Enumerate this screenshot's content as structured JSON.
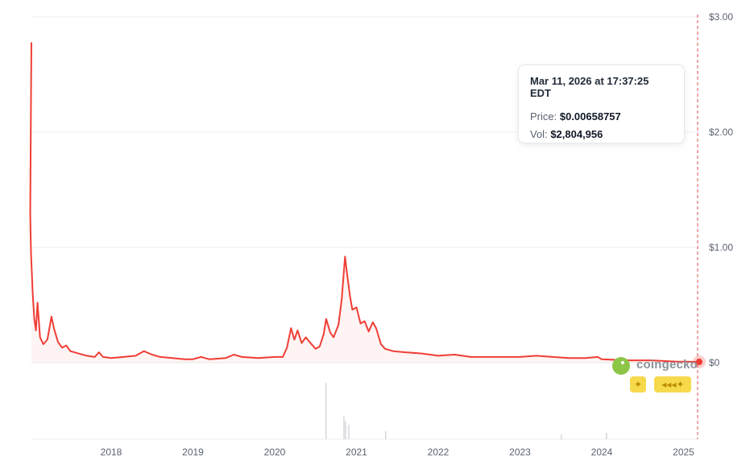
{
  "chart_data": {
    "type": "line",
    "title": "",
    "xlabel": "",
    "ylabel": "",
    "x_ticks": [
      "2018",
      "2019",
      "2020",
      "2021",
      "2022",
      "2023",
      "2024",
      "2025"
    ],
    "y_ticks": [
      "$0",
      "$1.00",
      "$2.00",
      "$3.00"
    ],
    "y_tick_values": [
      0,
      1,
      2,
      3
    ],
    "ylim": [
      0,
      3
    ],
    "grid": true,
    "line_color": "#ef3e36",
    "series": [
      {
        "values": [
          [
            2017.0,
            2.78
          ],
          [
            2017.01,
            1.3
          ],
          [
            2017.02,
            0.95
          ],
          [
            2017.04,
            0.6
          ],
          [
            2017.06,
            0.38
          ],
          [
            2017.08,
            0.28
          ],
          [
            2017.1,
            0.52
          ],
          [
            2017.13,
            0.22
          ],
          [
            2017.17,
            0.16
          ],
          [
            2017.22,
            0.2
          ],
          [
            2017.27,
            0.4
          ],
          [
            2017.3,
            0.3
          ],
          [
            2017.35,
            0.18
          ],
          [
            2017.4,
            0.13
          ],
          [
            2017.45,
            0.15
          ],
          [
            2017.5,
            0.1
          ],
          [
            2017.6,
            0.08
          ],
          [
            2017.7,
            0.06
          ],
          [
            2017.8,
            0.05
          ],
          [
            2017.85,
            0.09
          ],
          [
            2017.9,
            0.05
          ],
          [
            2018.0,
            0.04
          ],
          [
            2018.15,
            0.05
          ],
          [
            2018.3,
            0.06
          ],
          [
            2018.4,
            0.1
          ],
          [
            2018.5,
            0.07
          ],
          [
            2018.6,
            0.05
          ],
          [
            2018.75,
            0.04
          ],
          [
            2018.9,
            0.03
          ],
          [
            2019.0,
            0.03
          ],
          [
            2019.1,
            0.05
          ],
          [
            2019.2,
            0.03
          ],
          [
            2019.4,
            0.04
          ],
          [
            2019.5,
            0.07
          ],
          [
            2019.6,
            0.05
          ],
          [
            2019.8,
            0.04
          ],
          [
            2020.0,
            0.05
          ],
          [
            2020.1,
            0.05
          ],
          [
            2020.15,
            0.13
          ],
          [
            2020.2,
            0.3
          ],
          [
            2020.24,
            0.2
          ],
          [
            2020.28,
            0.28
          ],
          [
            2020.33,
            0.17
          ],
          [
            2020.38,
            0.22
          ],
          [
            2020.45,
            0.16
          ],
          [
            2020.5,
            0.12
          ],
          [
            2020.55,
            0.14
          ],
          [
            2020.6,
            0.25
          ],
          [
            2020.63,
            0.38
          ],
          [
            2020.68,
            0.26
          ],
          [
            2020.72,
            0.22
          ],
          [
            2020.78,
            0.33
          ],
          [
            2020.82,
            0.55
          ],
          [
            2020.86,
            0.92
          ],
          [
            2020.88,
            0.8
          ],
          [
            2020.92,
            0.58
          ],
          [
            2020.95,
            0.46
          ],
          [
            2021.0,
            0.48
          ],
          [
            2021.05,
            0.34
          ],
          [
            2021.1,
            0.36
          ],
          [
            2021.15,
            0.27
          ],
          [
            2021.2,
            0.35
          ],
          [
            2021.24,
            0.3
          ],
          [
            2021.3,
            0.16
          ],
          [
            2021.35,
            0.12
          ],
          [
            2021.45,
            0.1
          ],
          [
            2021.6,
            0.09
          ],
          [
            2021.8,
            0.08
          ],
          [
            2022.0,
            0.06
          ],
          [
            2022.2,
            0.07
          ],
          [
            2022.4,
            0.05
          ],
          [
            2022.7,
            0.05
          ],
          [
            2023.0,
            0.05
          ],
          [
            2023.2,
            0.06
          ],
          [
            2023.4,
            0.05
          ],
          [
            2023.6,
            0.04
          ],
          [
            2023.8,
            0.04
          ],
          [
            2023.95,
            0.05
          ],
          [
            2024.0,
            0.03
          ],
          [
            2024.3,
            0.02
          ],
          [
            2024.6,
            0.02
          ],
          [
            2024.9,
            0.01
          ],
          [
            2025.2,
            0.007
          ]
        ]
      }
    ]
  },
  "tooltip": {
    "date": "Mar 11, 2026 at 17:37:25 EDT",
    "price_label": "Price:",
    "price_value": "$0.00658757",
    "vol_label": "Vol:",
    "vol_value": "$2,804,956"
  },
  "watermark": {
    "brand": "coingecko",
    "badge1": "✦",
    "badge2": "◂◂◂✦"
  },
  "colors": {
    "line": "#ef3e36",
    "crosshair": "#e0524c",
    "grid": "#eceef1",
    "volume": "#d4d6db"
  }
}
